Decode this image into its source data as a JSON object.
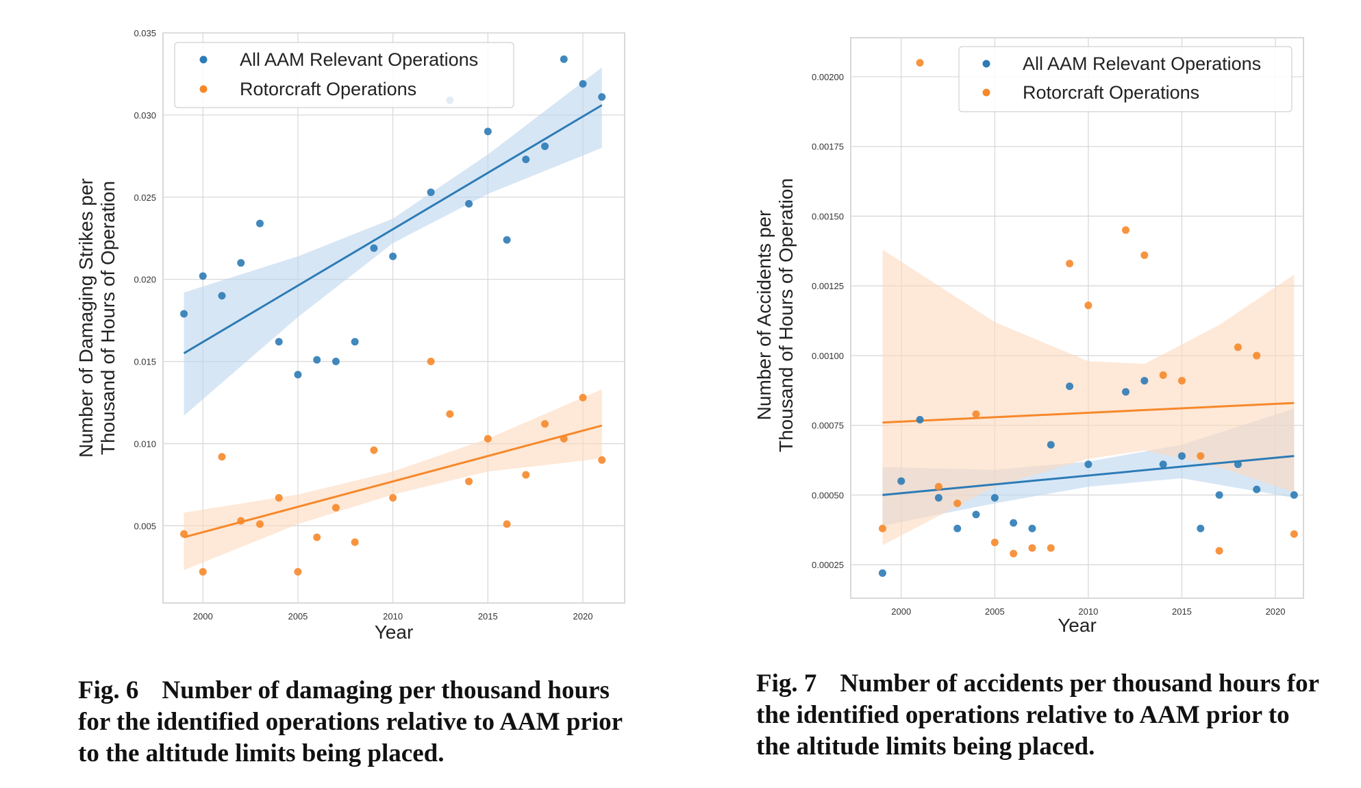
{
  "colors": {
    "blue": "#2c7bb6",
    "orange": "#f6882a",
    "blue_band": "#bcd6ee",
    "orange_band": "#fdd9bd",
    "grid": "#d9d9d9",
    "axes_edge": "#cccccc"
  },
  "charts": [
    {
      "caption_number": "Fig. 6",
      "caption_text": "Number of damaging per thousand hours for the identified operations relative to AAM prior to the altitude limits being placed."
    },
    {
      "caption_number": "Fig. 7",
      "caption_text": "Number of accidents per thousand hours for the identified operations relative to AAM prior to the altitude limits being placed."
    }
  ],
  "chart_data": [
    {
      "type": "scatter",
      "title": "",
      "xlabel": "Year",
      "ylabel_lines": [
        "Number of Damaging Strikes per",
        "Thousand of Hours of Operation"
      ],
      "xlim": [
        1997.9,
        2022.2
      ],
      "ylim": [
        0.0003,
        0.035
      ],
      "xticks": [
        2000,
        2005,
        2010,
        2015,
        2020
      ],
      "yticks": [
        0.005,
        0.01,
        0.015,
        0.02,
        0.025,
        0.03,
        0.035
      ],
      "ytick_labels": [
        "0.005",
        "0.010",
        "0.015",
        "0.020",
        "0.025",
        "0.030",
        "0.035"
      ],
      "grid": true,
      "legend_position": "top-left",
      "series": [
        {
          "name": "All AAM Relevant Operations",
          "color": "#2c7bb6",
          "points": [
            [
              1999,
              0.0179
            ],
            [
              2000,
              0.0202
            ],
            [
              2001,
              0.019
            ],
            [
              2002,
              0.021
            ],
            [
              2003,
              0.0234
            ],
            [
              2004,
              0.0162
            ],
            [
              2005,
              0.0142
            ],
            [
              2006,
              0.0151
            ],
            [
              2007,
              0.015
            ],
            [
              2008,
              0.0162
            ],
            [
              2009,
              0.0219
            ],
            [
              2010,
              0.0214
            ],
            [
              2012,
              0.0253
            ],
            [
              2013,
              0.0309
            ],
            [
              2014,
              0.0246
            ],
            [
              2015,
              0.029
            ],
            [
              2016,
              0.0224
            ],
            [
              2017,
              0.0273
            ],
            [
              2018,
              0.0281
            ],
            [
              2019,
              0.0334
            ],
            [
              2020,
              0.0319
            ],
            [
              2021,
              0.0311
            ]
          ],
          "fit": [
            [
              1999,
              0.0155
            ],
            [
              2021,
              0.0306
            ]
          ],
          "band_upper": [
            [
              1999,
              0.0192
            ],
            [
              2005,
              0.0214
            ],
            [
              2010,
              0.0237
            ],
            [
              2015,
              0.0276
            ],
            [
              2021,
              0.0329
            ]
          ],
          "band_lower": [
            [
              1999,
              0.0117
            ],
            [
              2005,
              0.0177
            ],
            [
              2010,
              0.0222
            ],
            [
              2015,
              0.0252
            ],
            [
              2021,
              0.028
            ]
          ]
        },
        {
          "name": "Rotorcraft Operations",
          "color": "#f6882a",
          "points": [
            [
              1999,
              0.0045
            ],
            [
              2000,
              0.0022
            ],
            [
              2001,
              0.0092
            ],
            [
              2002,
              0.0053
            ],
            [
              2003,
              0.0051
            ],
            [
              2004,
              0.0067
            ],
            [
              2005,
              0.0022
            ],
            [
              2006,
              0.0043
            ],
            [
              2007,
              0.0061
            ],
            [
              2008,
              0.004
            ],
            [
              2009,
              0.0096
            ],
            [
              2010,
              0.0067
            ],
            [
              2012,
              0.015
            ],
            [
              2013,
              0.0118
            ],
            [
              2014,
              0.0077
            ],
            [
              2015,
              0.0103
            ],
            [
              2016,
              0.0051
            ],
            [
              2017,
              0.0081
            ],
            [
              2018,
              0.0112
            ],
            [
              2019,
              0.0103
            ],
            [
              2020,
              0.0128
            ],
            [
              2021,
              0.009
            ]
          ],
          "fit": [
            [
              1999,
              0.0043
            ],
            [
              2021,
              0.0111
            ]
          ],
          "band_upper": [
            [
              1999,
              0.0058
            ],
            [
              2005,
              0.0069
            ],
            [
              2010,
              0.0083
            ],
            [
              2015,
              0.0103
            ],
            [
              2021,
              0.0133
            ]
          ],
          "band_lower": [
            [
              1999,
              0.0023
            ],
            [
              2005,
              0.0051
            ],
            [
              2010,
              0.0069
            ],
            [
              2015,
              0.0083
            ],
            [
              2021,
              0.0091
            ]
          ]
        }
      ]
    },
    {
      "type": "scatter",
      "title": "",
      "xlabel": "Year",
      "ylabel_lines": [
        "Number of Accidents per",
        "Thousand of Hours of Operation"
      ],
      "xlim": [
        1997.3,
        2021.5
      ],
      "ylim": [
        0.00013,
        0.00214
      ],
      "xticks": [
        2000,
        2005,
        2010,
        2015,
        2020
      ],
      "yticks": [
        0.00025,
        0.0005,
        0.00075,
        0.001,
        0.00125,
        0.0015,
        0.00175,
        0.002
      ],
      "ytick_labels": [
        "0.00025",
        "0.00050",
        "0.00075",
        "0.00100",
        "0.00125",
        "0.00150",
        "0.00175",
        "0.00200"
      ],
      "grid": true,
      "legend_position": "top-right",
      "series": [
        {
          "name": "All AAM Relevant Operations",
          "color": "#2c7bb6",
          "points": [
            [
              1999,
              0.00022
            ],
            [
              2000,
              0.00055
            ],
            [
              2001,
              0.00077
            ],
            [
              2002,
              0.00049
            ],
            [
              2003,
              0.00038
            ],
            [
              2004,
              0.00043
            ],
            [
              2005,
              0.00049
            ],
            [
              2006,
              0.0004
            ],
            [
              2007,
              0.00038
            ],
            [
              2008,
              0.00068
            ],
            [
              2009,
              0.00089
            ],
            [
              2010,
              0.00061
            ],
            [
              2012,
              0.00087
            ],
            [
              2013,
              0.00091
            ],
            [
              2014,
              0.00061
            ],
            [
              2015,
              0.00064
            ],
            [
              2016,
              0.00038
            ],
            [
              2017,
              0.0005
            ],
            [
              2018,
              0.00061
            ],
            [
              2019,
              0.00052
            ],
            [
              2021,
              0.0005
            ]
          ],
          "fit": [
            [
              1999,
              0.0005
            ],
            [
              2021,
              0.00064
            ]
          ],
          "band_upper": [
            [
              1999,
              0.0006
            ],
            [
              2005,
              0.00059
            ],
            [
              2010,
              0.00062
            ],
            [
              2015,
              0.00068
            ],
            [
              2021,
              0.00081
            ]
          ],
          "band_lower": [
            [
              1999,
              0.00039
            ],
            [
              2005,
              0.00047
            ],
            [
              2010,
              0.00053
            ],
            [
              2015,
              0.00056
            ],
            [
              2021,
              0.00049
            ]
          ]
        },
        {
          "name": "Rotorcraft Operations",
          "color": "#f6882a",
          "points": [
            [
              1999,
              0.00038
            ],
            [
              2001,
              0.00205
            ],
            [
              2002,
              0.00053
            ],
            [
              2003,
              0.00047
            ],
            [
              2004,
              0.00079
            ],
            [
              2005,
              0.00033
            ],
            [
              2006,
              0.00029
            ],
            [
              2007,
              0.00031
            ],
            [
              2008,
              0.00031
            ],
            [
              2009,
              0.00133
            ],
            [
              2010,
              0.00118
            ],
            [
              2012,
              0.00145
            ],
            [
              2013,
              0.00136
            ],
            [
              2014,
              0.00093
            ],
            [
              2015,
              0.00091
            ],
            [
              2016,
              0.00064
            ],
            [
              2017,
              0.0003
            ],
            [
              2018,
              0.00103
            ],
            [
              2019,
              0.001
            ],
            [
              2021,
              0.00036
            ]
          ],
          "fit": [
            [
              1999,
              0.00076
            ],
            [
              2021,
              0.00083
            ]
          ],
          "band_upper": [
            [
              1999,
              0.00138
            ],
            [
              2005,
              0.00112
            ],
            [
              2010,
              0.00098
            ],
            [
              2013,
              0.00097
            ],
            [
              2017,
              0.00111
            ],
            [
              2021,
              0.00129
            ]
          ],
          "band_lower": [
            [
              1999,
              0.00032
            ],
            [
              2005,
              0.00053
            ],
            [
              2010,
              0.00063
            ],
            [
              2013,
              0.00066
            ],
            [
              2017,
              0.0006
            ],
            [
              2021,
              0.00051
            ]
          ]
        }
      ]
    }
  ]
}
